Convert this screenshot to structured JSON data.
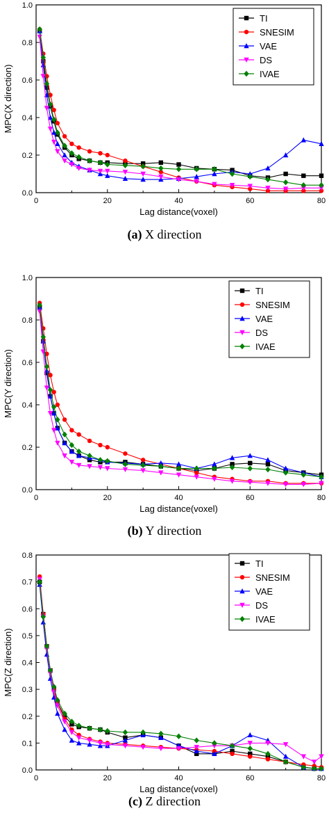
{
  "series_styles": [
    {
      "color": "#000000",
      "marker": "square"
    },
    {
      "color": "#ff0000",
      "marker": "circle"
    },
    {
      "color": "#0000ff",
      "marker": "triangle-up"
    },
    {
      "color": "#ff00ff",
      "marker": "triangle-down"
    },
    {
      "color": "#008000",
      "marker": "diamond"
    }
  ],
  "captions": [
    {
      "letter": "(a)",
      "text": "X direction"
    },
    {
      "letter": "(b)",
      "text": "Y direction"
    },
    {
      "letter": "(c)",
      "text": "Z direction"
    }
  ],
  "chart_data": [
    {
      "type": "line",
      "xlabel": "Lag distance(voxel)",
      "ylabel": "MPC(X direction)",
      "xlim": [
        0,
        80
      ],
      "ylim": [
        0,
        1.0
      ],
      "xticks": [
        "0",
        "20",
        "40",
        "60",
        "80"
      ],
      "yticks": [
        "0.0",
        "0.2",
        "0.4",
        "0.6",
        "0.8",
        "1.0"
      ],
      "legend_position": "top-right",
      "x": [
        1,
        2,
        3,
        4,
        5,
        6,
        8,
        10,
        12,
        15,
        18,
        20,
        25,
        30,
        35,
        40,
        45,
        50,
        55,
        60,
        65,
        70,
        75,
        80
      ],
      "series": [
        {
          "name": "TI",
          "values": [
            0.86,
            0.7,
            0.56,
            0.46,
            0.38,
            0.31,
            0.24,
            0.2,
            0.18,
            0.17,
            0.16,
            0.16,
            0.155,
            0.155,
            0.16,
            0.15,
            0.13,
            0.125,
            0.12,
            0.09,
            0.08,
            0.1,
            0.09,
            0.09
          ]
        },
        {
          "name": "SNESIM",
          "values": [
            0.87,
            0.74,
            0.62,
            0.52,
            0.44,
            0.37,
            0.3,
            0.26,
            0.24,
            0.22,
            0.21,
            0.2,
            0.17,
            0.14,
            0.11,
            0.08,
            0.06,
            0.04,
            0.03,
            0.02,
            0.01,
            0.01,
            0.01,
            0.01
          ]
        },
        {
          "name": "VAE",
          "values": [
            0.86,
            0.68,
            0.52,
            0.4,
            0.32,
            0.26,
            0.2,
            0.16,
            0.14,
            0.12,
            0.1,
            0.09,
            0.075,
            0.07,
            0.07,
            0.075,
            0.085,
            0.1,
            0.11,
            0.1,
            0.13,
            0.2,
            0.28,
            0.26
          ]
        },
        {
          "name": "DS",
          "values": [
            0.83,
            0.62,
            0.45,
            0.34,
            0.27,
            0.22,
            0.17,
            0.15,
            0.13,
            0.12,
            0.115,
            0.115,
            0.11,
            0.1,
            0.085,
            0.07,
            0.06,
            0.045,
            0.04,
            0.035,
            0.025,
            0.02,
            0.025,
            0.025
          ]
        },
        {
          "name": "IVAE",
          "values": [
            0.87,
            0.72,
            0.58,
            0.47,
            0.39,
            0.32,
            0.25,
            0.21,
            0.19,
            0.17,
            0.16,
            0.15,
            0.145,
            0.14,
            0.13,
            0.125,
            0.125,
            0.125,
            0.1,
            0.085,
            0.07,
            0.055,
            0.04,
            0.04
          ]
        }
      ]
    },
    {
      "type": "line",
      "xlabel": "Lag distance(voxel)",
      "ylabel": "MPC(Y direction)",
      "xlim": [
        0,
        80
      ],
      "ylim": [
        0,
        1.0
      ],
      "xticks": [
        "0",
        "20",
        "40",
        "60",
        "80"
      ],
      "yticks": [
        "0.0",
        "0.2",
        "0.4",
        "0.6",
        "0.8",
        "1.0"
      ],
      "legend_position": "top-right",
      "x": [
        1,
        2,
        3,
        4,
        5,
        6,
        8,
        10,
        12,
        15,
        18,
        20,
        25,
        30,
        35,
        40,
        45,
        50,
        55,
        60,
        65,
        70,
        75,
        80
      ],
      "series": [
        {
          "name": "TI",
          "values": [
            0.86,
            0.7,
            0.55,
            0.44,
            0.36,
            0.29,
            0.22,
            0.18,
            0.16,
            0.14,
            0.13,
            0.13,
            0.13,
            0.12,
            0.11,
            0.1,
            0.09,
            0.1,
            0.12,
            0.125,
            0.12,
            0.09,
            0.08,
            0.07
          ]
        },
        {
          "name": "SNESIM",
          "values": [
            0.88,
            0.76,
            0.64,
            0.54,
            0.46,
            0.4,
            0.33,
            0.28,
            0.26,
            0.23,
            0.21,
            0.2,
            0.17,
            0.14,
            0.12,
            0.1,
            0.08,
            0.06,
            0.05,
            0.04,
            0.04,
            0.03,
            0.03,
            0.03
          ]
        },
        {
          "name": "VAE",
          "values": [
            0.86,
            0.7,
            0.56,
            0.44,
            0.36,
            0.29,
            0.22,
            0.18,
            0.16,
            0.15,
            0.14,
            0.13,
            0.125,
            0.12,
            0.125,
            0.12,
            0.1,
            0.12,
            0.15,
            0.16,
            0.14,
            0.1,
            0.08,
            0.06
          ]
        },
        {
          "name": "DS",
          "values": [
            0.84,
            0.65,
            0.48,
            0.36,
            0.28,
            0.22,
            0.16,
            0.13,
            0.115,
            0.11,
            0.105,
            0.1,
            0.095,
            0.09,
            0.08,
            0.07,
            0.06,
            0.05,
            0.04,
            0.035,
            0.03,
            0.025,
            0.025,
            0.03
          ]
        },
        {
          "name": "IVAE",
          "values": [
            0.87,
            0.72,
            0.58,
            0.47,
            0.39,
            0.33,
            0.26,
            0.21,
            0.18,
            0.16,
            0.14,
            0.135,
            0.12,
            0.115,
            0.11,
            0.1,
            0.1,
            0.1,
            0.105,
            0.1,
            0.095,
            0.08,
            0.07,
            0.06
          ]
        }
      ]
    },
    {
      "type": "line",
      "xlabel": "Lag distance(voxel)",
      "ylabel": "MPC(Z direction)",
      "xlim": [
        0,
        80
      ],
      "ylim": [
        0,
        0.8
      ],
      "xticks": [
        "0",
        "20",
        "40",
        "60",
        "80"
      ],
      "yticks": [
        "0.0",
        "0.1",
        "0.2",
        "0.3",
        "0.4",
        "0.5",
        "0.6",
        "0.7",
        "0.8"
      ],
      "legend_position": "top-right",
      "x": [
        1,
        2,
        3,
        4,
        5,
        6,
        8,
        10,
        12,
        15,
        18,
        20,
        25,
        30,
        35,
        40,
        45,
        50,
        55,
        60,
        65,
        70,
        75,
        78,
        80
      ],
      "series": [
        {
          "name": "TI",
          "values": [
            0.7,
            0.58,
            0.46,
            0.37,
            0.3,
            0.25,
            0.2,
            0.17,
            0.16,
            0.155,
            0.15,
            0.14,
            0.12,
            0.13,
            0.12,
            0.09,
            0.06,
            0.06,
            0.07,
            0.06,
            0.05,
            0.03,
            0.01,
            0.005,
            0.005
          ]
        },
        {
          "name": "SNESIM",
          "values": [
            0.72,
            0.58,
            0.46,
            0.37,
            0.3,
            0.25,
            0.19,
            0.15,
            0.13,
            0.115,
            0.105,
            0.1,
            0.095,
            0.09,
            0.085,
            0.08,
            0.075,
            0.07,
            0.06,
            0.05,
            0.04,
            0.03,
            0.02,
            0.015,
            0.01
          ]
        },
        {
          "name": "VAE",
          "values": [
            0.69,
            0.55,
            0.43,
            0.34,
            0.27,
            0.21,
            0.15,
            0.11,
            0.1,
            0.095,
            0.09,
            0.09,
            0.11,
            0.13,
            0.12,
            0.09,
            0.07,
            0.06,
            0.09,
            0.13,
            0.11,
            0.05,
            0.01,
            0.005,
            0.005
          ]
        },
        {
          "name": "DS",
          "values": [
            0.71,
            0.57,
            0.45,
            0.36,
            0.29,
            0.24,
            0.18,
            0.14,
            0.12,
            0.11,
            0.1,
            0.095,
            0.09,
            0.085,
            0.08,
            0.08,
            0.085,
            0.09,
            0.09,
            0.1,
            0.1,
            0.095,
            0.05,
            0.03,
            0.05
          ]
        },
        {
          "name": "IVAE",
          "values": [
            0.7,
            0.57,
            0.46,
            0.37,
            0.31,
            0.26,
            0.21,
            0.18,
            0.165,
            0.155,
            0.15,
            0.145,
            0.14,
            0.14,
            0.135,
            0.125,
            0.11,
            0.1,
            0.09,
            0.08,
            0.06,
            0.03,
            0.01,
            0.005,
            0.005
          ]
        }
      ]
    }
  ]
}
